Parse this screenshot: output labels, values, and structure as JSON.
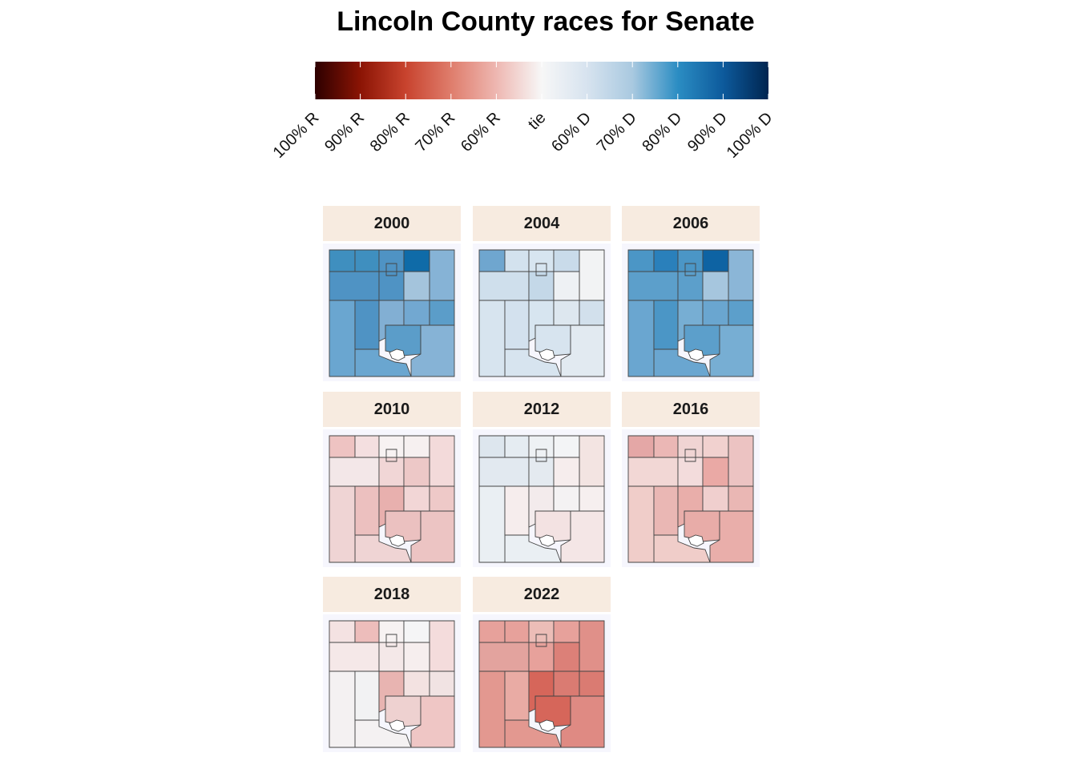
{
  "title": "Lincoln County races for Senate",
  "legend": {
    "labels": [
      "100% R",
      "90% R",
      "80% R",
      "70% R",
      "60% R",
      "tie",
      "60% D",
      "70% D",
      "80% D",
      "90% D",
      "100% D"
    ],
    "gradient_stops": [
      "#2d0000",
      "#8b1404",
      "#c8432e",
      "#df7d6c",
      "#eeb7b1",
      "#f7f7f7",
      "#d7e3ef",
      "#a9c9e0",
      "#2b8dc3",
      "#0d5a9c",
      "#002550"
    ]
  },
  "panels": [
    {
      "year": "2000",
      "fills": [
        "#3f8fbf",
        "#3f8fbf",
        "#4f93c4",
        "#0f6ba8",
        "#86b3d6",
        "#4f93c4",
        "#4f93c4",
        "#a4c4dc",
        "#6aa6d0",
        "#4f93c4",
        "#82afd3",
        "#72a8d1",
        "#5b9dc9",
        "#5b9dc9",
        "#86b3d6"
      ]
    },
    {
      "year": "2004",
      "fills": [
        "#6fa6cf",
        "#d3e2ee",
        "#d7e5f0",
        "#c9dbea",
        "#f2f3f4",
        "#cfdfec",
        "#c4d8e8",
        "#eef1f4",
        "#d7e4ef",
        "#d3e1ee",
        "#d7e5f0",
        "#dde7ef",
        "#d2e0ec",
        "#d7e4ef",
        "#e2eaf1"
      ]
    },
    {
      "year": "2006",
      "fills": [
        "#4b96c6",
        "#2a80bb",
        "#4b96c6",
        "#0e63a3",
        "#8bb6d7",
        "#5c9fcb",
        "#5c9fcb",
        "#a6c6de",
        "#6aa6d0",
        "#4b96c6",
        "#77aed3",
        "#6aa6d0",
        "#5c9fcb",
        "#5c9fcb",
        "#77aed3"
      ]
    },
    {
      "year": "2010",
      "fills": [
        "#eec3c2",
        "#f4dfe0",
        "#f7f2f2",
        "#f6f0f0",
        "#f3dada",
        "#f3e7e8",
        "#f1d6d6",
        "#edc8c7",
        "#efd4d4",
        "#ecc0bf",
        "#e8b0ae",
        "#f2d6d6",
        "#eec9c8",
        "#ebc1c0",
        "#ecc4c3"
      ]
    },
    {
      "year": "2012",
      "fills": [
        "#dde6ee",
        "#e5ecf2",
        "#eef1f4",
        "#f3f4f6",
        "#f3e4e2",
        "#e2e9f0",
        "#e4eaf0",
        "#f6eded",
        "#eaeff3",
        "#f6eded",
        "#f3ebec",
        "#f4f2f3",
        "#f6efef",
        "#f3e2e2",
        "#f4e6e6"
      ]
    },
    {
      "year": "2016",
      "fills": [
        "#e4a7a6",
        "#ebb7b5",
        "#f0d4d3",
        "#f1d1cf",
        "#ecc3c2",
        "#f2d7d5",
        "#f3dcdc",
        "#eaa9a5",
        "#f0cdc9",
        "#eab7b4",
        "#e9aeaa",
        "#f0cfce",
        "#eab7b4",
        "#e8aca8",
        "#e9aeaa"
      ]
    },
    {
      "year": "2018",
      "fills": [
        "#f4e2e2",
        "#edbdbb",
        "#f7f2f2",
        "#f5f5f6",
        "#f4dcdc",
        "#f5e8e8",
        "#f4e8e8",
        "#f6eeee",
        "#f4f1f2",
        "#f2f2f3",
        "#e8b4b1",
        "#f3e2e1",
        "#f1e3e3",
        "#eed1d0",
        "#efc6c5"
      ]
    },
    {
      "year": "2022",
      "fills": [
        "#e7a19b",
        "#e7a19b",
        "#ecbdb7",
        "#e7a19b",
        "#e09089",
        "#e3a39e",
        "#e7a19b",
        "#dc8078",
        "#e39890",
        "#e9aba4",
        "#d6665a",
        "#da7b72",
        "#da7b72",
        "#d6665a",
        "#df8a83"
      ]
    }
  ]
}
